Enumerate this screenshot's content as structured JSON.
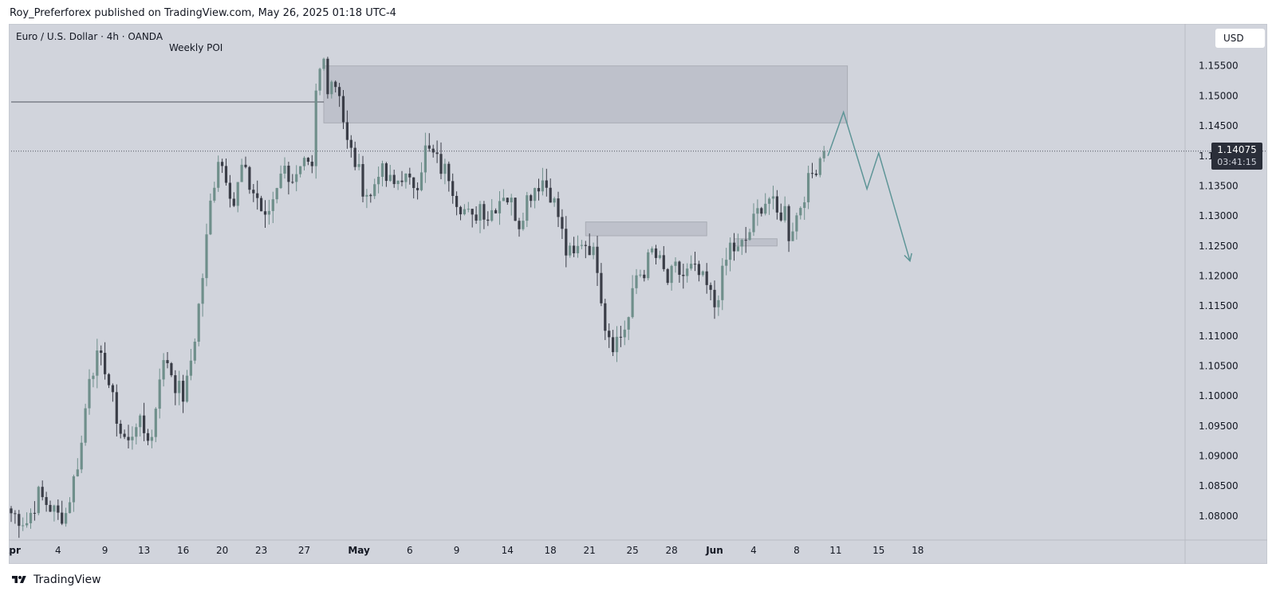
{
  "header": {
    "publish_line": "Roy_Preferforex published on TradingView.com, May 26, 2025 01:18 UTC-4"
  },
  "footer": {
    "brand": "TradingView"
  },
  "toolbar": {
    "currency": "USD"
  },
  "price_tag": {
    "price": "1.14075",
    "countdown": "03:41:15"
  },
  "colors": {
    "background": "#d1d4dc",
    "candle": "#6f8f8b",
    "zone": "#b6b9c3",
    "projection": "#5e9597",
    "dark_tag": "#2a2e39"
  },
  "chart_data": {
    "type": "candlestick",
    "symbol": "Euro / U.S. Dollar · 4h · OANDA",
    "annotation": "Weekly POI",
    "y_axis": {
      "range": [
        1.076,
        1.162
      ],
      "ticks": [
        "1.15500",
        "1.15000",
        "1.14500",
        "1.14000",
        "1.13500",
        "1.13000",
        "1.12500",
        "1.12000",
        "1.11500",
        "1.11000",
        "1.10500",
        "1.10000",
        "1.09500",
        "1.09000",
        "1.08500",
        "1.08000"
      ],
      "tick_values": [
        1.155,
        1.15,
        1.145,
        1.14,
        1.135,
        1.13,
        1.125,
        1.12,
        1.115,
        1.11,
        1.105,
        1.1,
        1.095,
        1.09,
        1.085,
        1.08
      ]
    },
    "x_axis": {
      "ticks": [
        {
          "label": "Apr",
          "major": true,
          "index": 0
        },
        {
          "label": "4",
          "major": false,
          "index": 12
        },
        {
          "label": "9",
          "major": false,
          "index": 24
        },
        {
          "label": "13",
          "major": false,
          "index": 34
        },
        {
          "label": "16",
          "major": false,
          "index": 44
        },
        {
          "label": "20",
          "major": false,
          "index": 54
        },
        {
          "label": "23",
          "major": false,
          "index": 64
        },
        {
          "label": "27",
          "major": false,
          "index": 75
        },
        {
          "label": "May",
          "major": true,
          "index": 89
        },
        {
          "label": "6",
          "major": false,
          "index": 102
        },
        {
          "label": "9",
          "major": false,
          "index": 114
        },
        {
          "label": "14",
          "major": false,
          "index": 127
        },
        {
          "label": "18",
          "major": false,
          "index": 138
        },
        {
          "label": "21",
          "major": false,
          "index": 148
        },
        {
          "label": "25",
          "major": false,
          "index": 159
        },
        {
          "label": "28",
          "major": false,
          "index": 169
        },
        {
          "label": "Jun",
          "major": true,
          "index": 180
        },
        {
          "label": "4",
          "major": false,
          "index": 190
        },
        {
          "label": "8",
          "major": false,
          "index": 201
        },
        {
          "label": "11",
          "major": false,
          "index": 211
        },
        {
          "label": "15",
          "major": false,
          "index": 222
        },
        {
          "label": "18",
          "major": false,
          "index": 232
        }
      ]
    },
    "close_path": [
      [
        0,
        1.0805
      ],
      [
        4,
        1.079
      ],
      [
        7,
        1.0835
      ],
      [
        10,
        1.0815
      ],
      [
        12,
        1.08
      ],
      [
        14,
        1.0805
      ],
      [
        16,
        1.086
      ],
      [
        18,
        1.092
      ],
      [
        20,
        1.104
      ],
      [
        22,
        1.106
      ],
      [
        24,
        1.105
      ],
      [
        26,
        1.099
      ],
      [
        28,
        1.094
      ],
      [
        30,
        1.092
      ],
      [
        32,
        1.096
      ],
      [
        34,
        1.094
      ],
      [
        36,
        1.093
      ],
      [
        38,
        1.104
      ],
      [
        40,
        1.106
      ],
      [
        42,
        1.102
      ],
      [
        44,
        1.1
      ],
      [
        45,
        1.102
      ],
      [
        47,
        1.11
      ],
      [
        49,
        1.12
      ],
      [
        51,
        1.132
      ],
      [
        53,
        1.14
      ],
      [
        55,
        1.137
      ],
      [
        57,
        1.132
      ],
      [
        59,
        1.138
      ],
      [
        61,
        1.135
      ],
      [
        63,
        1.133
      ],
      [
        65,
        1.129
      ],
      [
        67,
        1.133
      ],
      [
        69,
        1.138
      ],
      [
        71,
        1.137
      ],
      [
        73,
        1.136
      ],
      [
        75,
        1.138
      ],
      [
        77,
        1.137
      ],
      [
        78,
        1.15
      ],
      [
        79,
        1.154
      ],
      [
        80,
        1.156
      ],
      [
        81,
        1.152
      ],
      [
        82,
        1.153
      ],
      [
        84,
        1.151
      ],
      [
        85,
        1.146
      ],
      [
        86,
        1.142
      ],
      [
        88,
        1.139
      ],
      [
        90,
        1.135
      ],
      [
        92,
        1.133
      ],
      [
        94,
        1.138
      ],
      [
        96,
        1.136
      ],
      [
        98,
        1.135
      ],
      [
        100,
        1.137
      ],
      [
        102,
        1.135
      ],
      [
        104,
        1.136
      ],
      [
        106,
        1.141
      ],
      [
        108,
        1.14
      ],
      [
        110,
        1.138
      ],
      [
        112,
        1.137
      ],
      [
        114,
        1.133
      ],
      [
        116,
        1.131
      ],
      [
        118,
        1.129
      ],
      [
        120,
        1.132
      ],
      [
        122,
        1.13
      ],
      [
        124,
        1.132
      ],
      [
        126,
        1.134
      ],
      [
        128,
        1.132
      ],
      [
        130,
        1.129
      ],
      [
        132,
        1.133
      ],
      [
        134,
        1.135
      ],
      [
        136,
        1.136
      ],
      [
        138,
        1.134
      ],
      [
        140,
        1.13
      ],
      [
        142,
        1.124
      ],
      [
        144,
        1.123
      ],
      [
        146,
        1.126
      ],
      [
        148,
        1.125
      ],
      [
        150,
        1.122
      ],
      [
        152,
        1.112
      ],
      [
        154,
        1.109
      ],
      [
        156,
        1.11
      ],
      [
        158,
        1.113
      ],
      [
        160,
        1.12
      ],
      [
        162,
        1.121
      ],
      [
        164,
        1.124
      ],
      [
        166,
        1.122
      ],
      [
        168,
        1.119
      ],
      [
        170,
        1.121
      ],
      [
        172,
        1.12
      ],
      [
        174,
        1.121
      ],
      [
        176,
        1.12
      ],
      [
        178,
        1.118
      ],
      [
        180,
        1.115
      ],
      [
        182,
        1.12
      ],
      [
        184,
        1.125
      ],
      [
        186,
        1.124
      ],
      [
        188,
        1.126
      ],
      [
        190,
        1.129
      ],
      [
        192,
        1.132
      ],
      [
        194,
        1.133
      ],
      [
        196,
        1.13
      ],
      [
        198,
        1.131
      ],
      [
        199,
        1.127
      ],
      [
        201,
        1.13
      ],
      [
        203,
        1.134
      ],
      [
        205,
        1.137
      ],
      [
        207,
        1.14
      ],
      [
        208,
        1.1408
      ]
    ],
    "zones": [
      {
        "name": "weekly-poi-zone",
        "from_index": 80,
        "to_index": 214,
        "top": 1.155,
        "bottom": 1.1455
      },
      {
        "name": "demand-zone-1",
        "from_index": 147,
        "to_index": 178,
        "top": 1.129,
        "bottom": 1.1267
      },
      {
        "name": "demand-zone-2",
        "from_index": 185,
        "to_index": 196,
        "top": 1.1262,
        "bottom": 1.125
      }
    ],
    "lines": [
      {
        "name": "poi-level-line",
        "from_index": 0,
        "to_index": 80,
        "price": 1.149
      },
      {
        "name": "current-price-dotted-line",
        "from_index": 0,
        "to_index": 248,
        "price": 1.1408
      }
    ],
    "projection": [
      [
        209,
        1.14
      ],
      [
        213,
        1.1473
      ],
      [
        219,
        1.1345
      ],
      [
        222,
        1.1405
      ],
      [
        230,
        1.1225
      ]
    ]
  }
}
